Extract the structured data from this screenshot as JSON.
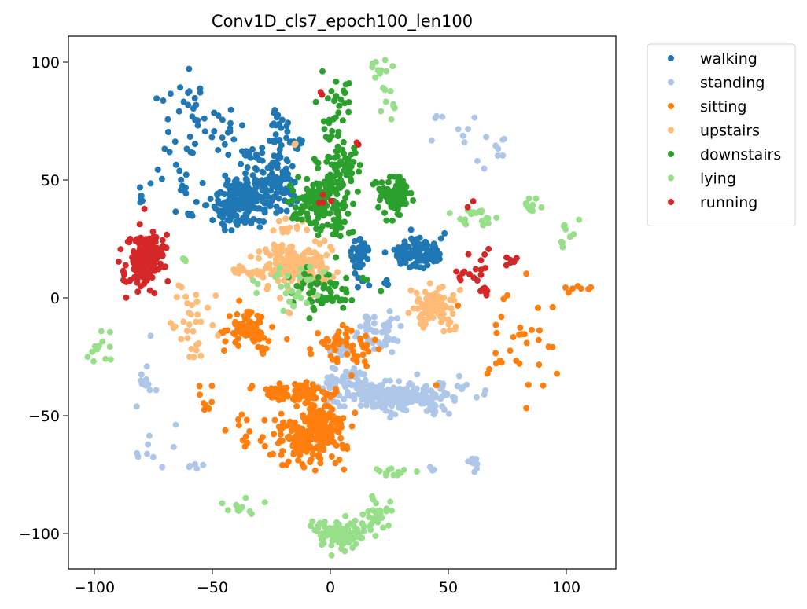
{
  "chart_data": {
    "type": "scatter",
    "title": "Conv1D_cls7_epoch100_len100",
    "xlabel": "",
    "ylabel": "",
    "xlim": [
      -111,
      121
    ],
    "ylim": [
      -115,
      111
    ],
    "xticks": [
      -100,
      -50,
      0,
      50,
      100
    ],
    "yticks": [
      -100,
      -50,
      0,
      50,
      100
    ],
    "xtick_labels": [
      "−100",
      "−50",
      "0",
      "50",
      "100"
    ],
    "ytick_labels": [
      "−100",
      "−50",
      "0",
      "50",
      "100"
    ],
    "grid": false,
    "legend_placement": "outside-upper-right",
    "series": [
      {
        "name": "walking",
        "color": "#1f77b4",
        "clusters": [
          {
            "cx": -35,
            "cy": 42,
            "sx": 6,
            "sy": 5,
            "n": 180
          },
          {
            "cx": -22,
            "cy": 48,
            "sx": 4,
            "sy": 6,
            "n": 80
          },
          {
            "cx": -44,
            "cy": 36,
            "sx": 4,
            "sy": 4,
            "n": 40
          },
          {
            "cx": 36,
            "cy": 19,
            "sx": 5,
            "sy": 3,
            "n": 120
          },
          {
            "cx": 13,
            "cy": 17,
            "sx": 2,
            "sy": 5,
            "n": 45
          },
          {
            "cx": -22,
            "cy": 70,
            "sx": 2,
            "sy": 6,
            "n": 25
          },
          {
            "cx": -15,
            "cy": 65,
            "sx": 2,
            "sy": 2,
            "n": 10
          },
          {
            "cx": -58,
            "cy": 78,
            "sx": 10,
            "sy": 10,
            "n": 35
          },
          {
            "cx": -65,
            "cy": 52,
            "sx": 8,
            "sy": 8,
            "n": 20
          },
          {
            "cx": -33,
            "cy": 61,
            "sx": 2,
            "sy": 3,
            "n": 12
          },
          {
            "cx": -80,
            "cy": 42,
            "sx": 1,
            "sy": 1,
            "n": 6
          },
          {
            "cx": -60,
            "cy": 36,
            "sx": 1,
            "sy": 1,
            "n": 4
          },
          {
            "cx": 24,
            "cy": 6,
            "sx": 1,
            "sy": 1,
            "n": 4
          },
          {
            "cx": -45,
            "cy": 72,
            "sx": 3,
            "sy": 6,
            "n": 8
          }
        ]
      },
      {
        "name": "standing",
        "color": "#aec7e8",
        "clusters": [
          {
            "cx": 28,
            "cy": -42,
            "sx": 12,
            "sy": 3,
            "n": 240
          },
          {
            "cx": 8,
            "cy": -35,
            "sx": 5,
            "sy": 3,
            "n": 50
          },
          {
            "cx": 22,
            "cy": -14,
            "sx": 4,
            "sy": 4,
            "n": 50
          },
          {
            "cx": 5,
            "cy": -20,
            "sx": 3,
            "sy": 3,
            "n": 20
          },
          {
            "cx": 53,
            "cy": 72,
            "sx": 6,
            "sy": 6,
            "n": 12
          },
          {
            "cx": 73,
            "cy": 64,
            "sx": 2,
            "sy": 3,
            "n": 6
          },
          {
            "cx": -77,
            "cy": -33,
            "sx": 3,
            "sy": 6,
            "n": 10
          },
          {
            "cx": -75,
            "cy": -60,
            "sx": 5,
            "sy": 6,
            "n": 10
          },
          {
            "cx": -58,
            "cy": -71,
            "sx": 3,
            "sy": 1,
            "n": 5
          },
          {
            "cx": 61,
            "cy": -71,
            "sx": 3,
            "sy": 3,
            "n": 8
          },
          {
            "cx": 44,
            "cy": -72,
            "sx": 1,
            "sy": 1,
            "n": 3
          }
        ]
      },
      {
        "name": "sitting",
        "color": "#ff7f0e",
        "clusters": [
          {
            "cx": -5,
            "cy": -55,
            "sx": 5,
            "sy": 7,
            "n": 200
          },
          {
            "cx": -16,
            "cy": -60,
            "sx": 5,
            "sy": 5,
            "n": 60
          },
          {
            "cx": -15,
            "cy": -40,
            "sx": 8,
            "sy": 2,
            "n": 80
          },
          {
            "cx": -35,
            "cy": -13,
            "sx": 5,
            "sy": 5,
            "n": 80
          },
          {
            "cx": 4,
            "cy": -20,
            "sx": 6,
            "sy": 4,
            "n": 40
          },
          {
            "cx": -35,
            "cy": -57,
            "sx": 5,
            "sy": 5,
            "n": 12
          },
          {
            "cx": -52,
            "cy": -44,
            "sx": 2,
            "sy": 5,
            "n": 8
          },
          {
            "cx": 80,
            "cy": -20,
            "sx": 12,
            "sy": 15,
            "n": 35
          },
          {
            "cx": 105,
            "cy": 4,
            "sx": 3,
            "sy": 1,
            "n": 8
          },
          {
            "cx": 12,
            "cy": -25,
            "sx": 3,
            "sy": 3,
            "n": 12
          }
        ]
      },
      {
        "name": "upstairs",
        "color": "#ffbb78",
        "clusters": [
          {
            "cx": -15,
            "cy": 14,
            "sx": 8,
            "sy": 5,
            "n": 200
          },
          {
            "cx": 45,
            "cy": -4,
            "sx": 4,
            "sy": 4,
            "n": 90
          },
          {
            "cx": -35,
            "cy": 11,
            "sx": 5,
            "sy": 1,
            "n": 25
          },
          {
            "cx": -62,
            "cy": -6,
            "sx": 6,
            "sy": 6,
            "n": 25
          },
          {
            "cx": -58,
            "cy": -21,
            "sx": 2,
            "sy": 2,
            "n": 8
          },
          {
            "cx": -18,
            "cy": 30,
            "sx": 3,
            "sy": 2,
            "n": 12
          },
          {
            "cx": -15,
            "cy": 65,
            "sx": 1,
            "sy": 1,
            "n": 3
          }
        ]
      },
      {
        "name": "downstairs",
        "color": "#2ca02c",
        "clusters": [
          {
            "cx": -5,
            "cy": 40,
            "sx": 5,
            "sy": 5,
            "n": 130
          },
          {
            "cx": 3,
            "cy": 55,
            "sx": 4,
            "sy": 8,
            "n": 70
          },
          {
            "cx": 27,
            "cy": 43,
            "sx": 4,
            "sy": 4,
            "n": 90
          },
          {
            "cx": 4,
            "cy": 82,
            "sx": 4,
            "sy": 6,
            "n": 25
          },
          {
            "cx": -3,
            "cy": 3,
            "sx": 8,
            "sy": 5,
            "n": 60
          },
          {
            "cx": 3,
            "cy": 30,
            "sx": 3,
            "sy": 2,
            "n": 18
          },
          {
            "cx": 9,
            "cy": 53,
            "sx": 2,
            "sy": 3,
            "n": 8
          }
        ]
      },
      {
        "name": "lying",
        "color": "#98df8a",
        "clusters": [
          {
            "cx": 5,
            "cy": -100,
            "sx": 7,
            "sy": 3,
            "n": 90
          },
          {
            "cx": 20,
            "cy": -92,
            "sx": 3,
            "sy": 3,
            "n": 25
          },
          {
            "cx": -35,
            "cy": -89,
            "sx": 5,
            "sy": 3,
            "n": 12
          },
          {
            "cx": 20,
            "cy": 98,
            "sx": 2,
            "sy": 2,
            "n": 10
          },
          {
            "cx": 25,
            "cy": 85,
            "sx": 2,
            "sy": 5,
            "n": 10
          },
          {
            "cx": 60,
            "cy": 35,
            "sx": 6,
            "sy": 2,
            "n": 20
          },
          {
            "cx": 102,
            "cy": 27,
            "sx": 3,
            "sy": 4,
            "n": 10
          },
          {
            "cx": 85,
            "cy": 39,
            "sx": 2,
            "sy": 2,
            "n": 10
          },
          {
            "cx": -97,
            "cy": -22,
            "sx": 3,
            "sy": 5,
            "n": 12
          },
          {
            "cx": 25,
            "cy": -74,
            "sx": 4,
            "sy": 1,
            "n": 12
          },
          {
            "cx": -17,
            "cy": 5,
            "sx": 8,
            "sy": 5,
            "n": 30
          },
          {
            "cx": -62,
            "cy": 17,
            "sx": 1,
            "sy": 1,
            "n": 3
          }
        ]
      },
      {
        "name": "running",
        "color": "#d62728",
        "clusters": [
          {
            "cx": -80,
            "cy": 15,
            "sx": 4,
            "sy": 6,
            "n": 130
          },
          {
            "cx": -73,
            "cy": 21,
            "sx": 2,
            "sy": 3,
            "n": 25
          },
          {
            "cx": 65,
            "cy": 3,
            "sx": 1,
            "sy": 1,
            "n": 8
          },
          {
            "cx": 63,
            "cy": 13,
            "sx": 3,
            "sy": 3,
            "n": 12
          },
          {
            "cx": 76,
            "cy": 15,
            "sx": 1,
            "sy": 1,
            "n": 6
          },
          {
            "cx": 55,
            "cy": 10,
            "sx": 1,
            "sy": 1,
            "n": 4
          },
          {
            "cx": -3,
            "cy": 43,
            "sx": 1,
            "sy": 1,
            "n": 4
          },
          {
            "cx": -4,
            "cy": 87,
            "sx": 1,
            "sy": 1,
            "n": 2
          },
          {
            "cx": 11,
            "cy": 65,
            "sx": 1,
            "sy": 1,
            "n": 2
          },
          {
            "cx": 60,
            "cy": 40,
            "sx": 1,
            "sy": 1,
            "n": 2
          }
        ]
      }
    ]
  }
}
